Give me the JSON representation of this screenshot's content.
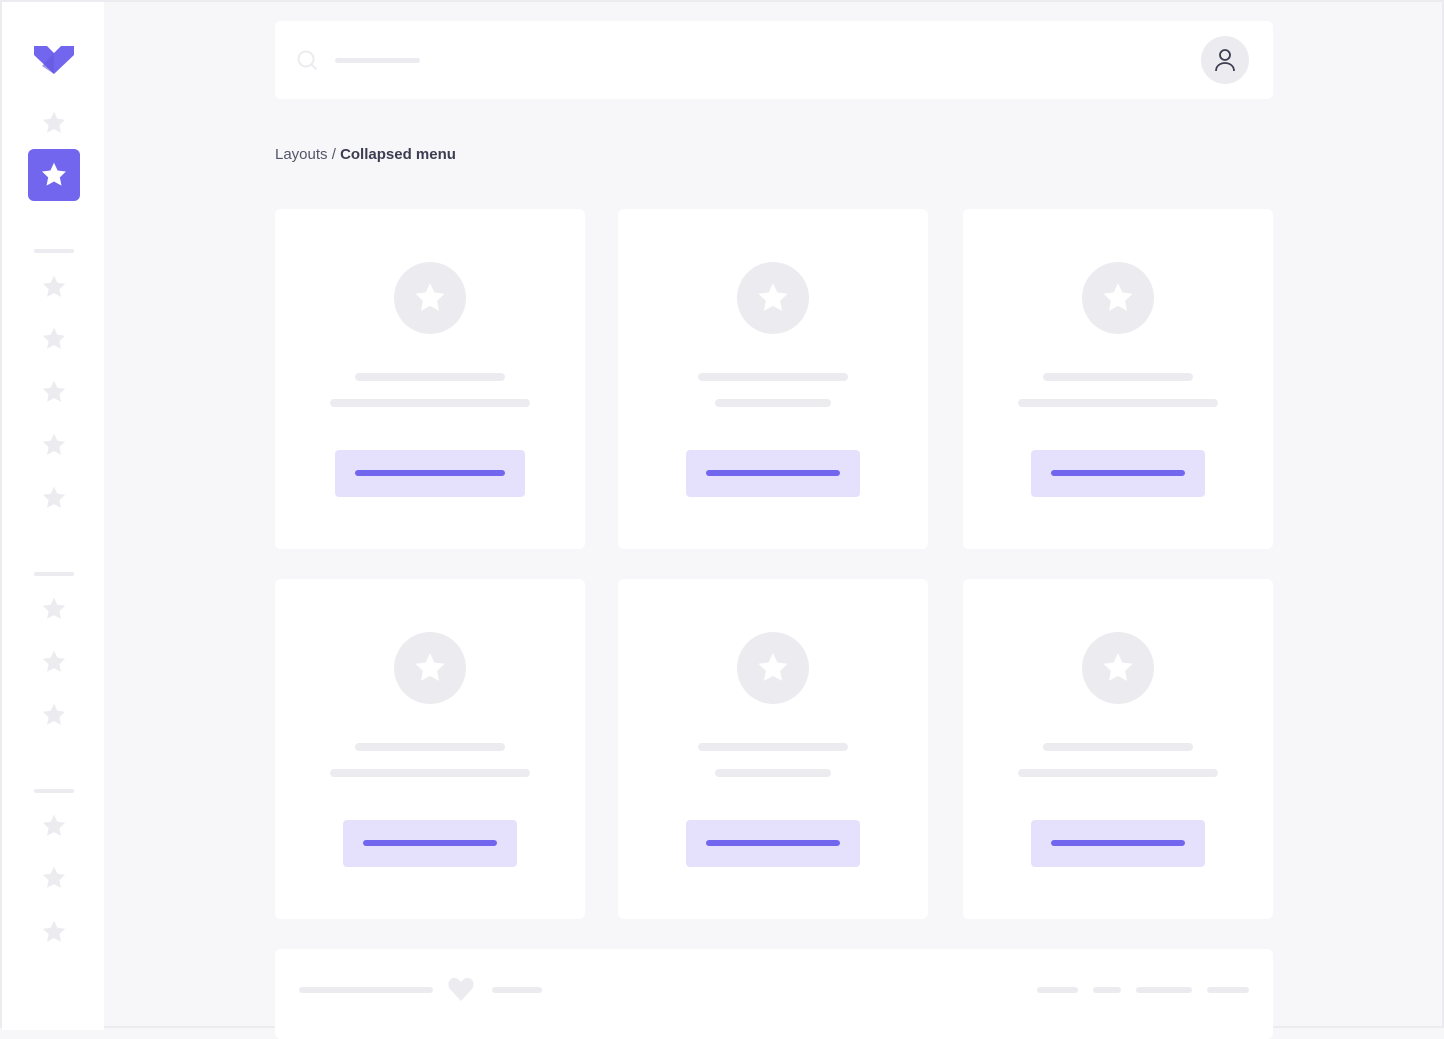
{
  "colors": {
    "accent": "#7366ee",
    "accent_light": "#e5e1fc",
    "placeholder": "#ececf0",
    "background": "#f7f7f9"
  },
  "sidebar": {
    "logo_icon": "heart-chevron-logo",
    "item_icon": "star-icon",
    "active_index": 1
  },
  "header": {
    "search_icon": "search-icon",
    "user_icon": "user-icon"
  },
  "breadcrumb": {
    "parent": "Layouts",
    "separator": " / ",
    "current": "Collapsed menu"
  },
  "cards": {
    "count": 6,
    "icon": "star-icon"
  },
  "footer": {
    "icon": "heart-icon"
  }
}
